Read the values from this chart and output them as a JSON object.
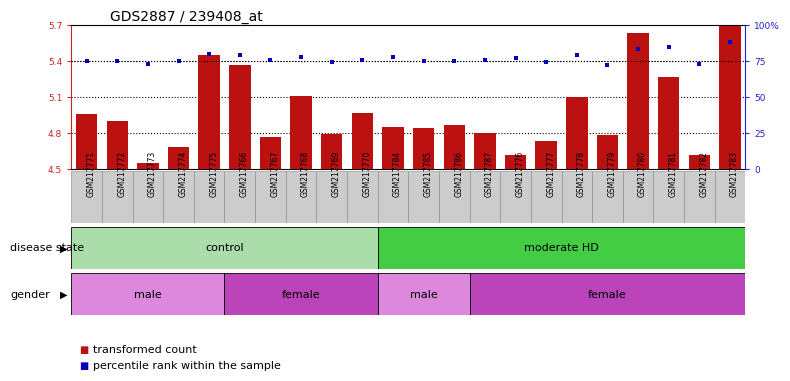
{
  "title": "GDS2887 / 239408_at",
  "samples": [
    "GSM217771",
    "GSM217772",
    "GSM217773",
    "GSM217774",
    "GSM217775",
    "GSM217766",
    "GSM217767",
    "GSM217768",
    "GSM217769",
    "GSM217770",
    "GSM217784",
    "GSM217785",
    "GSM217786",
    "GSM217787",
    "GSM217776",
    "GSM217777",
    "GSM217778",
    "GSM217779",
    "GSM217780",
    "GSM217781",
    "GSM217782",
    "GSM217783"
  ],
  "bar_values": [
    4.96,
    4.9,
    4.55,
    4.68,
    5.45,
    5.37,
    4.77,
    5.11,
    4.79,
    4.97,
    4.85,
    4.84,
    4.87,
    4.8,
    4.62,
    4.73,
    5.1,
    4.78,
    5.63,
    5.27,
    4.62,
    5.69
  ],
  "percentile_values": [
    75,
    75,
    73,
    75,
    80,
    79,
    76,
    78,
    74,
    76,
    78,
    75,
    75,
    76,
    77,
    74,
    79,
    72,
    83,
    85,
    73,
    88
  ],
  "ylim_left": [
    4.5,
    5.7
  ],
  "ylim_right": [
    0,
    100
  ],
  "yticks_left": [
    4.5,
    4.8,
    5.1,
    5.4,
    5.7
  ],
  "yticks_right": [
    0,
    25,
    50,
    75,
    100
  ],
  "ytick_labels_left": [
    "4.5",
    "4.8",
    "5.1",
    "5.4",
    "5.7"
  ],
  "ytick_labels_right": [
    "0",
    "25",
    "50",
    "75",
    "100%"
  ],
  "hlines": [
    4.8,
    5.1,
    5.4
  ],
  "bar_color": "#bb1111",
  "dot_color": "#0000bb",
  "bar_width": 0.7,
  "disease_groups": [
    {
      "label": "control",
      "start": 0,
      "end": 10,
      "color": "#aaddaa"
    },
    {
      "label": "moderate HD",
      "start": 10,
      "end": 22,
      "color": "#44cc44"
    }
  ],
  "gender_groups": [
    {
      "label": "male",
      "start": 0,
      "end": 5,
      "color": "#dd88dd"
    },
    {
      "label": "female",
      "start": 5,
      "end": 10,
      "color": "#bb44bb"
    },
    {
      "label": "male",
      "start": 10,
      "end": 13,
      "color": "#dd88dd"
    },
    {
      "label": "female",
      "start": 13,
      "end": 22,
      "color": "#bb44bb"
    }
  ],
  "legend_items": [
    {
      "label": "transformed count",
      "color": "#bb1111"
    },
    {
      "label": "percentile rank within the sample",
      "color": "#0000bb"
    }
  ],
  "background_color": "#ffffff",
  "plot_bg_color": "#ffffff",
  "label_color_left": "#cc2222",
  "label_color_right": "#2222cc",
  "disease_label": "disease state",
  "gender_label": "gender",
  "tick_label_fontsize": 6.5,
  "axis_label_fontsize": 8,
  "title_fontsize": 10,
  "group_label_fontsize": 8,
  "legend_fontsize": 8,
  "sample_box_color": "#cccccc",
  "sample_box_edge": "#888888"
}
